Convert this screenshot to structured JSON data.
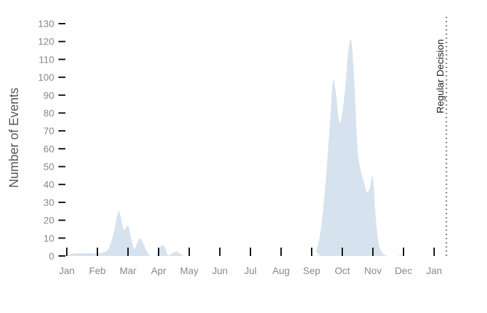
{
  "chart_data": {
    "type": "area",
    "title": "",
    "xlabel": "",
    "ylabel": "Number of Events",
    "ylim": [
      0,
      130
    ],
    "yticks": [
      0,
      10,
      20,
      30,
      40,
      50,
      60,
      70,
      80,
      90,
      100,
      110,
      120,
      130
    ],
    "xlim": [
      0,
      12.5
    ],
    "xtick_positions": [
      0,
      1,
      2,
      3,
      4,
      5,
      6,
      7,
      8,
      9,
      10,
      11,
      12
    ],
    "xtick_labels": [
      "Jan",
      "Feb",
      "Mar",
      "Apr",
      "May",
      "Jun",
      "Jul",
      "Aug",
      "Sep",
      "Oct",
      "Nov",
      "Dec",
      "Jan"
    ],
    "grid": false,
    "fill_color": "#d6e2ee",
    "series": [
      {
        "x": [
          0.0,
          0.1,
          0.3,
          0.6,
          1.0,
          1.2,
          1.35,
          1.45,
          1.55,
          1.7,
          1.85,
          2.0,
          2.1,
          2.2,
          2.3,
          2.4,
          2.5,
          2.6,
          2.7,
          2.8,
          2.9,
          3.0,
          3.1,
          3.2,
          3.3,
          3.45,
          3.6,
          3.75,
          3.9,
          4.05,
          4.15,
          4.25,
          4.35,
          4.5,
          4.65,
          4.8,
          8.0,
          8.15,
          8.3,
          8.45,
          8.6,
          8.7,
          8.8,
          8.9,
          9.0,
          9.1,
          9.2,
          9.3,
          9.4,
          9.5,
          9.6,
          9.7,
          9.8,
          9.9,
          10.0,
          10.1,
          10.2,
          10.3,
          10.4,
          10.5,
          10.6,
          10.7,
          10.8,
          10.9,
          11.0,
          11.2,
          11.4,
          11.6,
          11.8,
          12.5
        ],
        "y": [
          0,
          1,
          1.5,
          1.5,
          1.5,
          2,
          3.5,
          8,
          14,
          25,
          15,
          17,
          10,
          4,
          7,
          10,
          7,
          3,
          0.5,
          0,
          0,
          3,
          6,
          5,
          0.5,
          1.5,
          2.5,
          0.5,
          0,
          0,
          0,
          0,
          0,
          0,
          0,
          0,
          0,
          3,
          15,
          40,
          75,
          98,
          90,
          75,
          80,
          95,
          115,
          120,
          95,
          60,
          48,
          42,
          36,
          38,
          44,
          20,
          6,
          2,
          0.5,
          0,
          0,
          0,
          0,
          0.5,
          0,
          0,
          0,
          0,
          0,
          0
        ]
      }
    ],
    "annotations": [
      {
        "x": 12.4,
        "text": "Regular Decision",
        "line_style": "dotted"
      }
    ]
  }
}
